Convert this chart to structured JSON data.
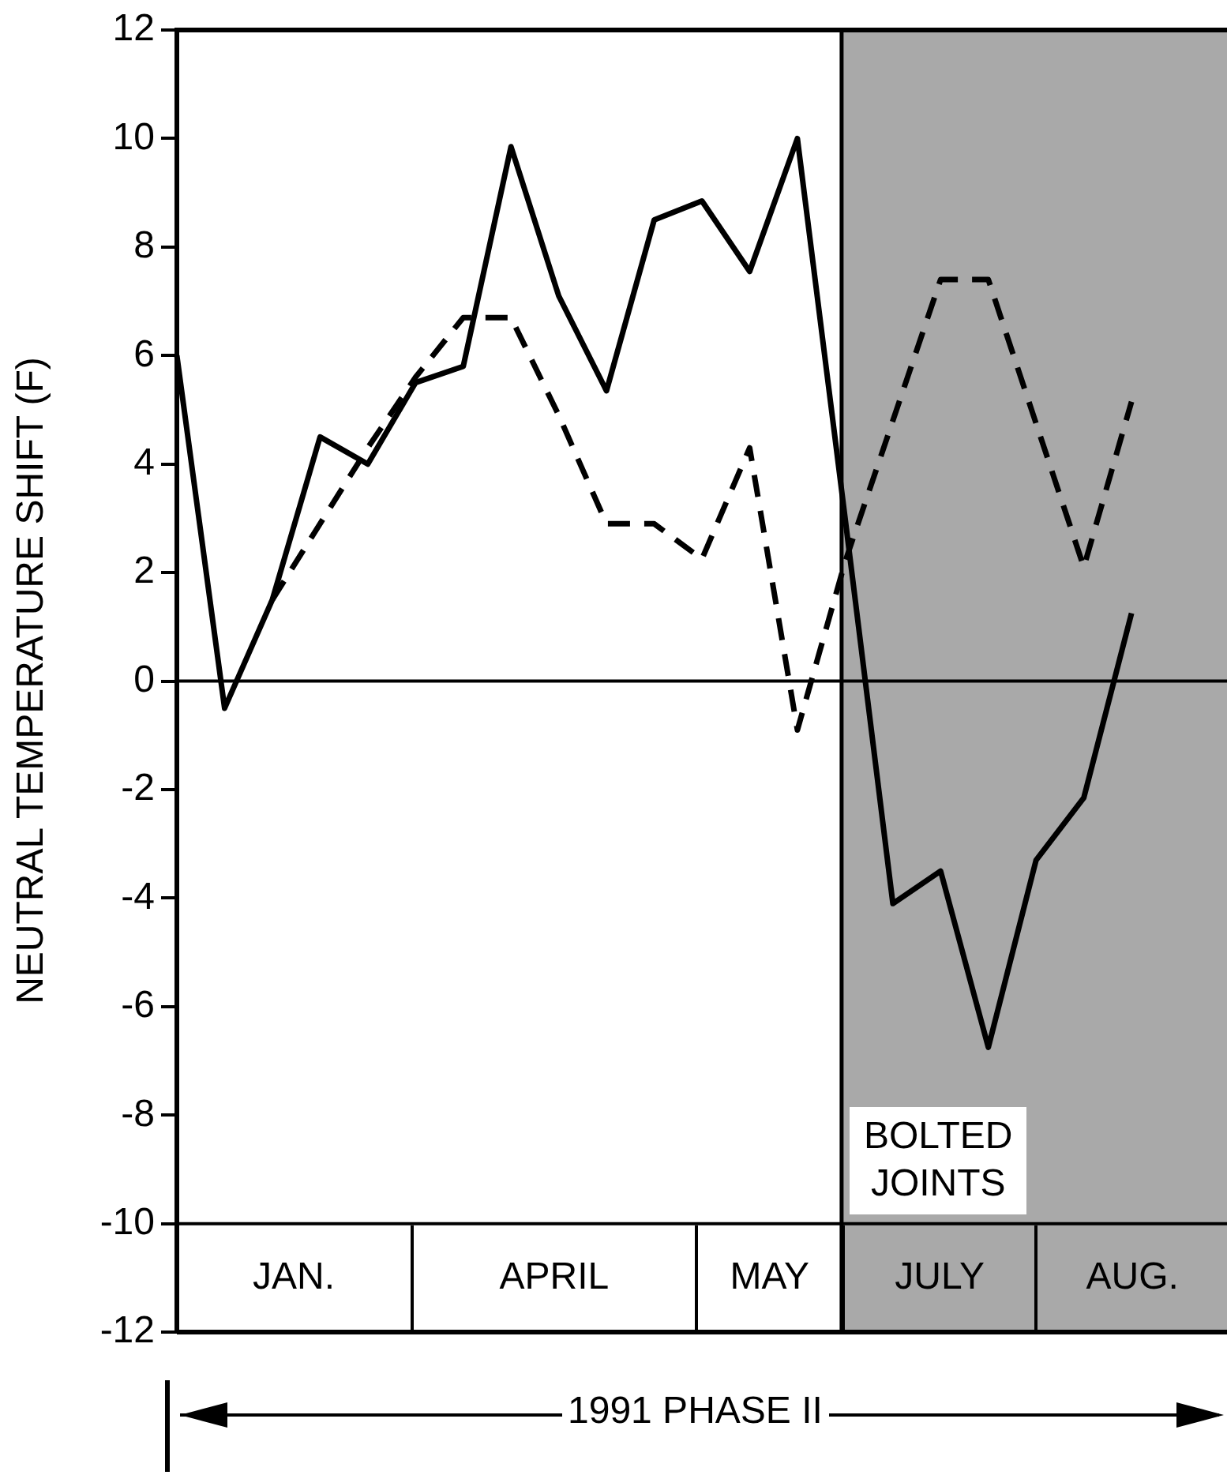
{
  "chart_data": {
    "type": "line",
    "ylabel": "NEUTRAL TEMPERATURE SHIFT (F)",
    "categories": [
      null,
      null,
      null,
      null,
      null,
      null,
      null,
      null,
      null,
      null,
      null,
      null,
      null,
      null,
      null,
      null,
      null,
      null,
      null,
      null,
      null,
      null,
      null
    ],
    "series": [
      {
        "color": "#000000",
        "line_style": "solid",
        "values": [
          6,
          -0.5,
          1.5,
          4.5,
          4,
          5.5,
          5.8,
          9.85,
          7.1,
          5.35,
          8.5,
          8.85,
          7.55,
          10,
          3,
          -4.1,
          -3.5,
          -6.75,
          -3.3,
          -2.15,
          1.25,
          null,
          null
        ]
      },
      {
        "color": "#000000",
        "line_style": "dashed",
        "values": [
          null,
          null,
          1.5,
          null,
          4.3,
          5.6,
          6.7,
          6.7,
          4.9,
          2.9,
          2.9,
          2.25,
          4.3,
          -0.9,
          2.2,
          null,
          7.4,
          7.4,
          null,
          2.1,
          5.15,
          null,
          null
        ]
      }
    ],
    "ylim": [
      -12,
      12
    ],
    "yticks": [
      -12,
      -10,
      -8,
      -6,
      -4,
      -2,
      0,
      2,
      4,
      6,
      8,
      10,
      12
    ],
    "grid": false,
    "legend": false,
    "marker": "none",
    "ref_lines": [
      {
        "axis": "y",
        "value": 0,
        "color": "#000000"
      },
      {
        "axis": "y",
        "value": -10,
        "color": "#000000"
      }
    ],
    "annotations": [
      "JAN.",
      "APRIL",
      "MAY",
      "JULY",
      "AUG.",
      "1991 PHASE II",
      "BOLTED JOINTS"
    ]
  }
}
